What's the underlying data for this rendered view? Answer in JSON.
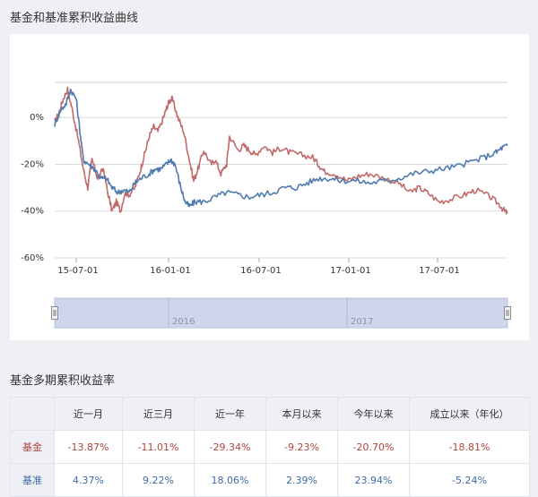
{
  "sections": {
    "chart_title": "基金和基准累积收益曲线",
    "table_title": "基金多期累积收益率"
  },
  "colors": {
    "fund": "#c26a6a",
    "benchmark": "#4f7bb0",
    "navigator_fill": "#cdd6ea"
  },
  "chart_data": {
    "type": "line",
    "ylim": [
      -60,
      15
    ],
    "yticks": [
      {
        "value": 0,
        "label": "0%"
      },
      {
        "value": -20,
        "label": "-20%"
      },
      {
        "value": -40,
        "label": "-40%"
      },
      {
        "value": -60,
        "label": "-60%"
      }
    ],
    "xticks": [
      "15-07-01",
      "16-01-01",
      "16-07-01",
      "17-01-01",
      "17-07-01"
    ],
    "navigator_labels": [
      "2016",
      "2017"
    ],
    "series": [
      {
        "key": "fund",
        "points": [
          [
            0,
            -2
          ],
          [
            0.15,
            2
          ],
          [
            0.3,
            8
          ],
          [
            0.45,
            12
          ],
          [
            0.6,
            4
          ],
          [
            0.8,
            -8
          ],
          [
            1.0,
            -22
          ],
          [
            1.15,
            -30
          ],
          [
            1.3,
            -18
          ],
          [
            1.5,
            -26
          ],
          [
            1.7,
            -22
          ],
          [
            1.85,
            -32
          ],
          [
            2.0,
            -40
          ],
          [
            2.15,
            -36
          ],
          [
            2.3,
            -40
          ],
          [
            2.45,
            -32
          ],
          [
            2.6,
            -33
          ],
          [
            2.8,
            -30
          ],
          [
            3.0,
            -22
          ],
          [
            3.15,
            -15
          ],
          [
            3.3,
            -8
          ],
          [
            3.45,
            -4
          ],
          [
            3.6,
            -6
          ],
          [
            3.8,
            0
          ],
          [
            3.9,
            4
          ],
          [
            4.0,
            7
          ],
          [
            4.1,
            8
          ],
          [
            4.3,
            0
          ],
          [
            4.5,
            -6
          ],
          [
            4.7,
            -18
          ],
          [
            4.85,
            -27
          ],
          [
            5.0,
            -22
          ],
          [
            5.2,
            -14
          ],
          [
            5.45,
            -20
          ],
          [
            5.6,
            -18
          ],
          [
            5.8,
            -24
          ],
          [
            6.0,
            -20
          ],
          [
            6.1,
            -8
          ],
          [
            6.4,
            -14
          ],
          [
            6.6,
            -12
          ],
          [
            6.8,
            -14
          ],
          [
            7.0,
            -16
          ],
          [
            7.3,
            -12
          ],
          [
            7.6,
            -15
          ],
          [
            7.9,
            -13
          ],
          [
            8.2,
            -15
          ],
          [
            8.6,
            -16
          ],
          [
            9.0,
            -17
          ],
          [
            9.2,
            -20
          ],
          [
            9.4,
            -23
          ],
          [
            9.8,
            -24
          ],
          [
            10.2,
            -27
          ],
          [
            10.6,
            -25
          ],
          [
            11.0,
            -24
          ],
          [
            11.5,
            -26
          ],
          [
            12.0,
            -28
          ],
          [
            12.4,
            -32
          ],
          [
            12.7,
            -30
          ],
          [
            13.0,
            -32
          ],
          [
            13.4,
            -36
          ],
          [
            13.8,
            -35
          ],
          [
            14.3,
            -33
          ],
          [
            14.7,
            -31
          ],
          [
            15.2,
            -34
          ],
          [
            15.5,
            -37
          ],
          [
            15.7,
            -40
          ],
          [
            15.8,
            -41
          ]
        ]
      },
      {
        "key": "benchmark",
        "points": [
          [
            0,
            -3
          ],
          [
            0.2,
            3
          ],
          [
            0.4,
            6
          ],
          [
            0.55,
            12
          ],
          [
            0.75,
            8
          ],
          [
            0.9,
            -8
          ],
          [
            1.0,
            -18
          ],
          [
            1.2,
            -20
          ],
          [
            1.4,
            -22
          ],
          [
            1.6,
            -26
          ],
          [
            1.8,
            -26
          ],
          [
            2.0,
            -30
          ],
          [
            2.2,
            -32
          ],
          [
            2.4,
            -31
          ],
          [
            2.6,
            -32
          ],
          [
            2.8,
            -28
          ],
          [
            3.0,
            -26
          ],
          [
            3.3,
            -24
          ],
          [
            3.5,
            -22
          ],
          [
            3.7,
            -22
          ],
          [
            3.9,
            -20
          ],
          [
            4.05,
            -18
          ],
          [
            4.2,
            -20
          ],
          [
            4.4,
            -30
          ],
          [
            4.55,
            -36
          ],
          [
            4.7,
            -38
          ],
          [
            4.9,
            -36
          ],
          [
            5.2,
            -36
          ],
          [
            5.6,
            -34
          ],
          [
            6.0,
            -32
          ],
          [
            6.4,
            -33
          ],
          [
            6.8,
            -34
          ],
          [
            7.2,
            -33
          ],
          [
            7.6,
            -32
          ],
          [
            8.0,
            -30
          ],
          [
            8.4,
            -30
          ],
          [
            8.8,
            -28
          ],
          [
            9.2,
            -26
          ],
          [
            9.6,
            -26
          ],
          [
            10.0,
            -27
          ],
          [
            10.5,
            -27
          ],
          [
            11.0,
            -28
          ],
          [
            11.5,
            -27
          ],
          [
            12.0,
            -26
          ],
          [
            12.5,
            -24
          ],
          [
            13.0,
            -23
          ],
          [
            13.5,
            -22
          ],
          [
            14.0,
            -21
          ],
          [
            14.5,
            -19
          ],
          [
            15.0,
            -17
          ],
          [
            15.4,
            -15
          ],
          [
            15.6,
            -13
          ],
          [
            15.8,
            -12
          ]
        ]
      }
    ]
  },
  "table": {
    "headers": [
      "",
      "近一月",
      "近三月",
      "近一年",
      "本月以来",
      "今年以来",
      "成立以来（年化）"
    ],
    "rows": [
      {
        "label": "基金",
        "values": [
          "-13.87%",
          "-11.01%",
          "-29.34%",
          "-9.23%",
          "-20.70%",
          "-18.81%"
        ]
      },
      {
        "label": "基准",
        "values": [
          "4.37%",
          "9.22%",
          "18.06%",
          "2.39%",
          "23.94%",
          "-5.24%"
        ]
      }
    ]
  }
}
